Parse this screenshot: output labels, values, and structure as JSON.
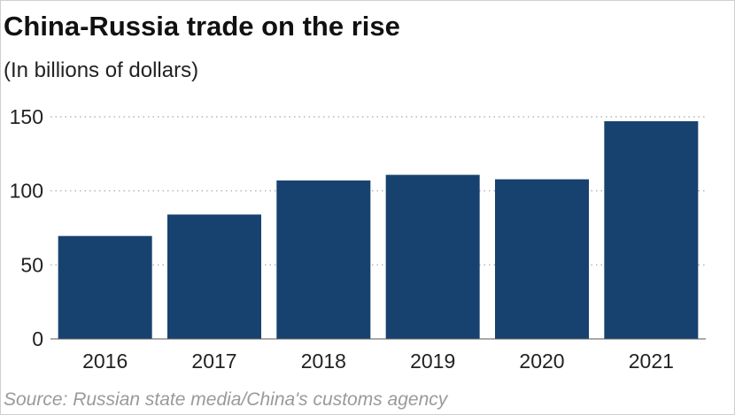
{
  "title": "China-Russia trade on the rise",
  "subtitle": "(In billions of dollars)",
  "source": "Source: Russian state media/China's customs agency",
  "colors": {
    "bar": "#17426f",
    "grid": "#b5b5b5",
    "axis": "#555555"
  },
  "chart_data": {
    "type": "bar",
    "categories": [
      "2016",
      "2017",
      "2018",
      "2019",
      "2020",
      "2021"
    ],
    "values": [
      69.5,
      84,
      107,
      110.8,
      107.8,
      147
    ],
    "ylim": [
      0,
      150
    ],
    "yticks": [
      0,
      50,
      100,
      150
    ],
    "ytick_labels": [
      "0",
      "50",
      "100",
      "150"
    ],
    "grid": "horizontal dotted",
    "legend": "none"
  }
}
